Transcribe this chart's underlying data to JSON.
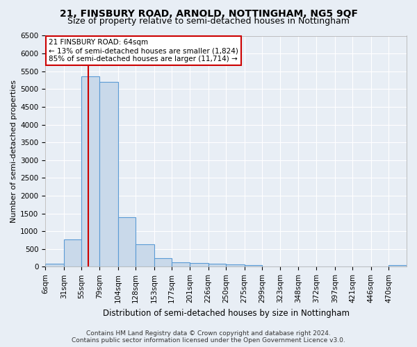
{
  "title": "21, FINSBURY ROAD, ARNOLD, NOTTINGHAM, NG5 9QF",
  "subtitle": "Size of property relative to semi-detached houses in Nottingham",
  "xlabel": "Distribution of semi-detached houses by size in Nottingham",
  "ylabel": "Number of semi-detached properties",
  "footer_line1": "Contains HM Land Registry data © Crown copyright and database right 2024.",
  "footer_line2": "Contains public sector information licensed under the Open Government Licence v3.0.",
  "bar_edges": [
    6,
    31,
    55,
    79,
    104,
    128,
    153,
    177,
    201,
    226,
    250,
    275,
    299,
    323,
    348,
    372,
    397,
    421,
    446,
    470,
    494
  ],
  "bar_heights": [
    75,
    775,
    5350,
    5200,
    1400,
    625,
    250,
    130,
    100,
    75,
    60,
    50,
    10,
    5,
    5,
    2,
    2,
    1,
    1,
    50
  ],
  "bar_color": "#c9d9ea",
  "bar_edge_color": "#5b9bd5",
  "red_line_x": 64,
  "annotation_title": "21 FINSBURY ROAD: 64sqm",
  "annotation_line1": "← 13% of semi-detached houses are smaller (1,824)",
  "annotation_line2": "85% of semi-detached houses are larger (11,714) →",
  "annotation_box_color": "#ffffff",
  "annotation_box_edge_color": "#cc0000",
  "ylim": [
    0,
    6500
  ],
  "yticks": [
    0,
    500,
    1000,
    1500,
    2000,
    2500,
    3000,
    3500,
    4000,
    4500,
    5000,
    5500,
    6000,
    6500
  ],
  "background_color": "#e8eef5",
  "plot_bg_color": "#e8eef5",
  "grid_color": "#ffffff",
  "title_fontsize": 10,
  "subtitle_fontsize": 9,
  "xlabel_fontsize": 8.5,
  "ylabel_fontsize": 8,
  "tick_fontsize": 7.5,
  "annotation_fontsize": 7.5,
  "footer_fontsize": 6.5
}
